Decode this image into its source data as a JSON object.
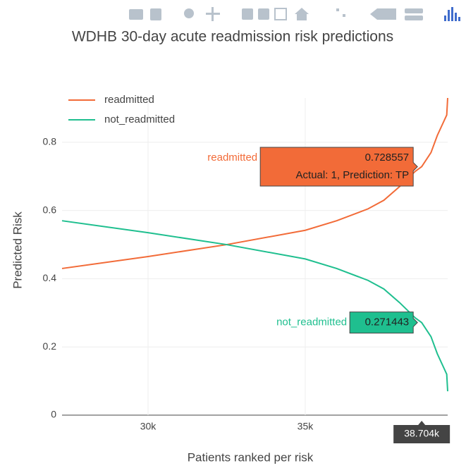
{
  "chart_data": {
    "type": "line",
    "title": "WDHB 30-day acute readmission risk predictions",
    "xlabel": "Patients ranked per risk",
    "ylabel": "Predicted Risk",
    "xlim": [
      27265,
      39530
    ],
    "ylim": [
      0,
      0.93
    ],
    "xticks": [
      {
        "value": 30000,
        "label": "30k"
      },
      {
        "value": 35000,
        "label": "35k"
      }
    ],
    "yticks": [
      0,
      0.2,
      0.4,
      0.6,
      0.8
    ],
    "grid": true,
    "legend": "upper left",
    "x": [
      27265,
      30000,
      32500,
      35000,
      36000,
      37000,
      37500,
      38000,
      38500,
      38704,
      39000,
      39200,
      39400,
      39500,
      39530
    ],
    "series": [
      {
        "name": "readmitted",
        "color": "#f26b38",
        "values": [
          0.43,
          0.465,
          0.5,
          0.542,
          0.57,
          0.605,
          0.63,
          0.67,
          0.715,
          0.728557,
          0.77,
          0.82,
          0.86,
          0.88,
          0.93
        ]
      },
      {
        "name": "not_readmitted",
        "color": "#1fbf8f",
        "values": [
          0.57,
          0.535,
          0.5,
          0.458,
          0.43,
          0.395,
          0.37,
          0.33,
          0.285,
          0.271443,
          0.23,
          0.18,
          0.14,
          0.12,
          0.07
        ]
      }
    ],
    "hover_x": {
      "value": 38704,
      "label": "38.704k"
    },
    "hover": [
      {
        "value": 0.728557,
        "text": "Actual: 1, Prediction: TP"
      },
      {
        "value": 0.271443
      }
    ]
  }
}
